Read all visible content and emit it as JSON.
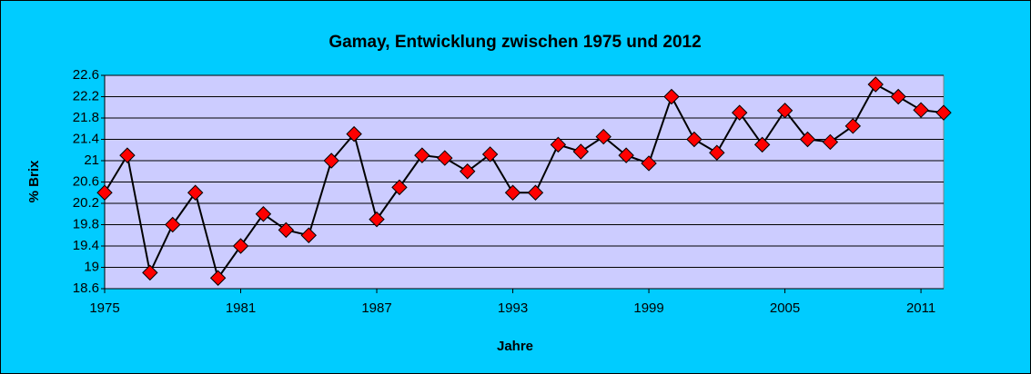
{
  "chart_data": {
    "type": "line",
    "title": "Gamay, Entwicklung zwischen 1975 und 2012",
    "x_label": "Jahre",
    "y_label": "% Brix",
    "x": [
      1975,
      1976,
      1977,
      1978,
      1979,
      1980,
      1981,
      1982,
      1983,
      1984,
      1985,
      1986,
      1987,
      1988,
      1989,
      1990,
      1991,
      1992,
      1993,
      1994,
      1995,
      1996,
      1997,
      1998,
      1999,
      2000,
      2001,
      2002,
      2003,
      2004,
      2005,
      2006,
      2007,
      2008,
      2009,
      2010,
      2011,
      2012
    ],
    "series": [
      {
        "name": "Gamay",
        "color": "#ff0000",
        "values": [
          20.4,
          21.1,
          18.9,
          19.8,
          20.4,
          18.8,
          19.4,
          20.0,
          19.7,
          19.6,
          21.0,
          21.5,
          19.9,
          20.5,
          21.1,
          21.05,
          20.8,
          21.12,
          20.4,
          20.4,
          21.3,
          21.17,
          21.45,
          21.1,
          20.95,
          22.2,
          21.4,
          21.15,
          21.9,
          21.3,
          21.94,
          21.4,
          21.35,
          21.65,
          22.43,
          22.2,
          21.95,
          21.9
        ]
      }
    ],
    "xlim": [
      1975,
      2012
    ],
    "xticks": [
      1975,
      1981,
      1987,
      1993,
      1999,
      2005,
      2011
    ],
    "ylim": [
      18.6,
      22.6
    ],
    "yticks": [
      18.6,
      19,
      19.4,
      19.8,
      20.2,
      20.6,
      21,
      21.4,
      21.8,
      22.2,
      22.6
    ],
    "grid": true,
    "legend": false
  }
}
